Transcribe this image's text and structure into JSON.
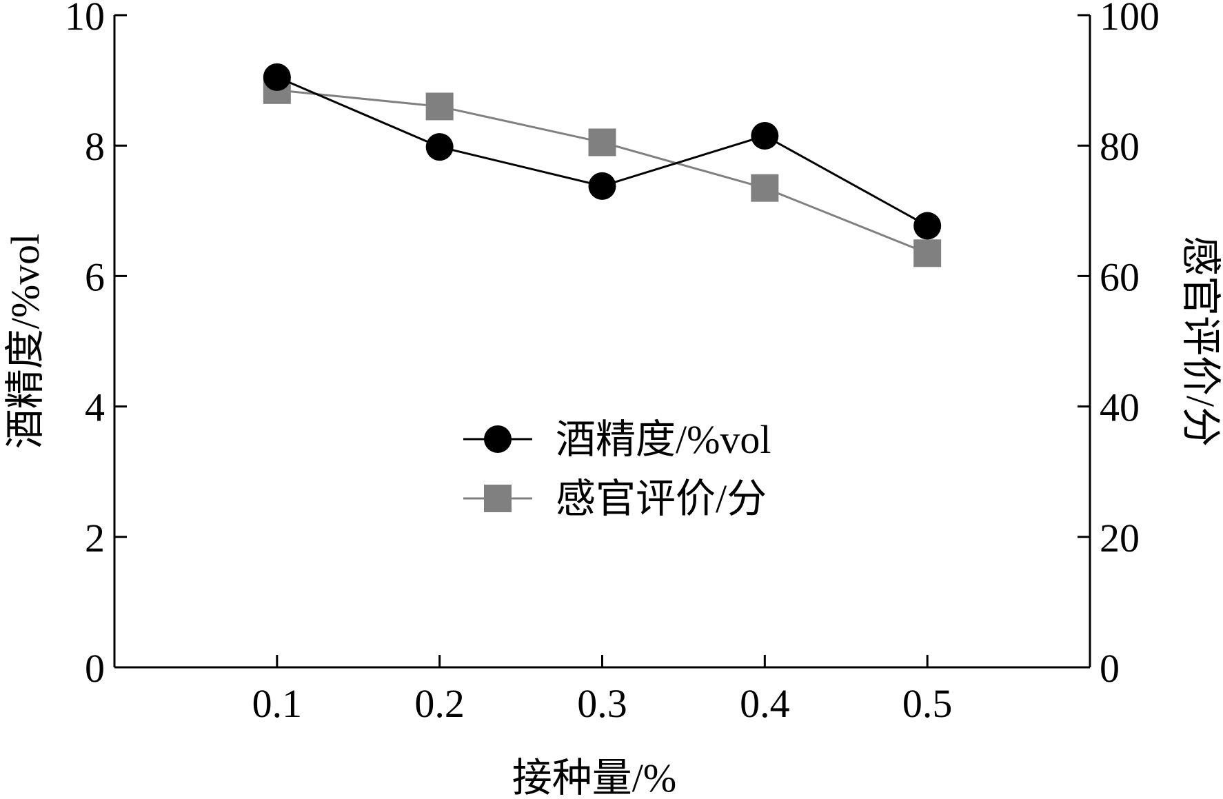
{
  "chart_data": {
    "type": "line",
    "title": "",
    "xlabel": "接种量/%",
    "ylabel_left": "酒精度/%vol",
    "ylabel_right": "感官评价/分",
    "x": [
      0.1,
      0.2,
      0.3,
      0.4,
      0.5
    ],
    "x_tick_labels": [
      "0.1",
      "0.2",
      "0.3",
      "0.4",
      "0.5"
    ],
    "xlim": [
      0,
      0.6
    ],
    "ylim_left": [
      0,
      10
    ],
    "ylim_right": [
      0,
      100
    ],
    "y_ticks_left": [
      "0",
      "2",
      "4",
      "6",
      "8",
      "10"
    ],
    "y_ticks_right": [
      "0",
      "20",
      "40",
      "60",
      "80",
      "100"
    ],
    "grid": false,
    "legend_position": "center",
    "series": [
      {
        "name": "酒精度/%vol",
        "axis": "left",
        "marker": "circle",
        "color": "#000000",
        "values": [
          9.05,
          7.98,
          7.38,
          8.15,
          6.77
        ]
      },
      {
        "name": "感官评价/分",
        "axis": "right",
        "marker": "square",
        "color": "#808080",
        "values": [
          88.5,
          86,
          80.5,
          73.5,
          63.5
        ]
      }
    ]
  }
}
